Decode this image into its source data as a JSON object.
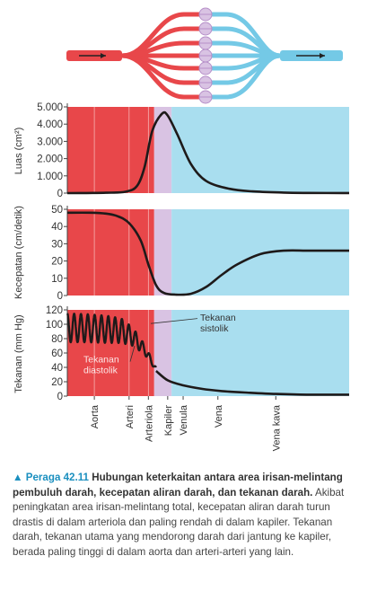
{
  "colors": {
    "artery": "#e8474a",
    "capillary_region": "#d9c3e3",
    "vein": "#a9deef",
    "vein_dark": "#74c9e6",
    "curve": "#1e1a1a"
  },
  "vessel_icon": "blood-vessel-network-illustration",
  "chart_data": [
    {
      "type": "line",
      "title": "",
      "ylabel": "Luas (cm²)",
      "xlabel": "",
      "ylim": [
        0,
        5000
      ],
      "yticks": [
        "5.000",
        "4.000",
        "3.000",
        "2.000",
        "1.000",
        "0"
      ],
      "ytick_values": [
        5000,
        4000,
        3000,
        2000,
        1000,
        0
      ],
      "grid": false,
      "x": [
        0,
        0.5,
        1.0,
        1.5,
        1.8,
        2.0,
        2.2,
        2.45,
        2.6,
        2.85,
        3.2,
        3.6,
        4.2,
        4.8,
        5.6,
        6.2,
        7.3
      ],
      "values": [
        0,
        5,
        20,
        80,
        400,
        1500,
        3600,
        4600,
        4500,
        3400,
        1700,
        700,
        250,
        100,
        30,
        10,
        5
      ],
      "series": [
        {
          "name": "",
          "values": [
            0,
            5,
            20,
            80,
            400,
            1500,
            3600,
            4600,
            4500,
            3400,
            1700,
            700,
            250,
            100,
            30,
            10,
            5
          ]
        }
      ]
    },
    {
      "type": "line",
      "title": "",
      "ylabel": "Kecepatan (cm/detik)",
      "xlabel": "",
      "ylim": [
        0,
        50
      ],
      "yticks": [
        "50",
        "40",
        "30",
        "20",
        "10",
        "0"
      ],
      "ytick_values": [
        50,
        40,
        30,
        20,
        10,
        0
      ],
      "grid": false,
      "x": [
        0,
        0.6,
        1.0,
        1.3,
        1.6,
        1.9,
        2.1,
        2.3,
        2.5,
        2.8,
        3.2,
        3.6,
        4.0,
        4.4,
        5.0,
        5.6,
        6.3,
        7.3
      ],
      "values": [
        48,
        48,
        47.5,
        46,
        42,
        32,
        18,
        6,
        1.5,
        0.5,
        1,
        5,
        12,
        18,
        24,
        26,
        26,
        26
      ],
      "series": [
        {
          "name": "",
          "values": [
            48,
            48,
            47.5,
            46,
            42,
            32,
            18,
            6,
            1.5,
            0.5,
            1,
            5,
            12,
            18,
            24,
            26,
            26,
            26
          ]
        }
      ]
    },
    {
      "type": "line",
      "title": "",
      "ylabel": "Tekanan (mm Hg)",
      "xlabel": "",
      "ylim": [
        0,
        120
      ],
      "yticks": [
        "120",
        "100",
        "80",
        "60",
        "40",
        "20",
        "0"
      ],
      "ytick_values": [
        120,
        100,
        80,
        60,
        40,
        20,
        0
      ],
      "grid": false,
      "systolic": {
        "x": [
          0,
          0.5,
          1.0,
          1.4,
          1.7,
          2.0,
          2.3
        ],
        "values": [
          115,
          114,
          112,
          108,
          95,
          72,
          40
        ]
      },
      "diastolic": {
        "x": [
          0,
          0.5,
          1.0,
          1.4,
          1.7,
          2.0,
          2.3
        ],
        "values": [
          75,
          75,
          74,
          74,
          70,
          58,
          35
        ]
      },
      "tail": {
        "x": [
          2.3,
          2.6,
          3.0,
          3.5,
          4.0,
          4.6,
          5.4,
          6.2,
          7.3
        ],
        "values": [
          35,
          22,
          15,
          10,
          7,
          5,
          3,
          2,
          2
        ]
      },
      "annotations": [
        {
          "text_lines": [
            "Tekanan",
            "sistolik"
          ]
        },
        {
          "text_lines": [
            "Tekanan",
            "diastolik"
          ]
        }
      ],
      "series": [
        {
          "name": "Tekanan sistolik",
          "values": [
            115,
            114,
            112,
            108,
            95,
            72,
            40
          ]
        },
        {
          "name": "Tekanan diastolik",
          "values": [
            75,
            75,
            74,
            74,
            70,
            58,
            35
          ]
        }
      ]
    }
  ],
  "x_categories": [
    "Aorta",
    "Arteri",
    "Arteriola",
    "Kapiler",
    "Venula",
    "Vena",
    "Vena kava"
  ],
  "x_category_positions": [
    0.7,
    1.6,
    2.1,
    2.6,
    3.0,
    3.9,
    5.4
  ],
  "regions": {
    "artery_end": 2.25,
    "capillary_end": 2.7,
    "x_max": 7.3
  },
  "caption": {
    "marker": "▲",
    "label": "Peraga 42.11",
    "title": "Hubungan keterkaitan antara area irisan-melintang pembuluh darah, kecepatan aliran darah, dan tekanan darah.",
    "body": "Akibat peningkatan area irisan-melintang total, kecepatan aliran darah turun drastis di dalam arteriola dan paling rendah di dalam kapiler. Tekanan darah, tekanan utama yang mendorong darah dari jantung ke kapiler, berada paling tinggi di dalam aorta dan arteri-arteri yang lain."
  }
}
